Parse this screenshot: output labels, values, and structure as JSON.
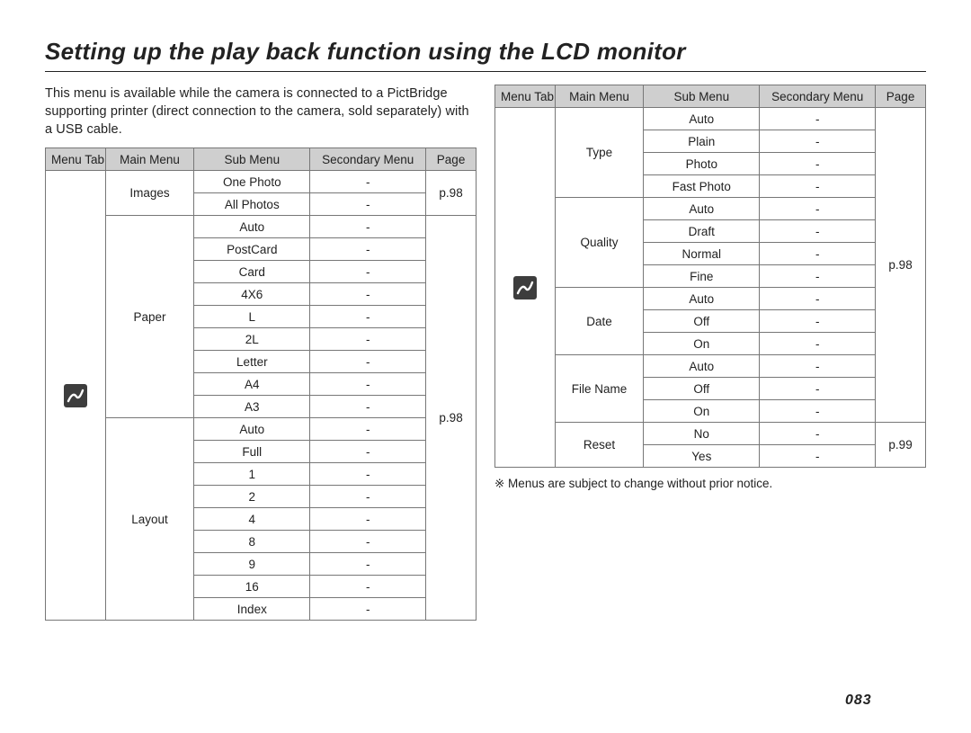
{
  "heading": "Setting up the play back function using the LCD monitor",
  "intro": "This menu is available while the camera is connected to a PictBridge supporting printer (direct connection to the camera, sold separately) with a USB cable.",
  "headers": {
    "tab": "Menu Tab",
    "main": "Main Menu",
    "sub": "Sub Menu",
    "sec": "Secondary Menu",
    "page": "Page"
  },
  "icon_name": "pictbridge-icon",
  "icon_bg": "#3d3d3d",
  "table1": {
    "icon_rowspan": 20,
    "page_text": "p.98",
    "groups": [
      {
        "main": "Images",
        "subs": [
          "One Photo",
          "All Photos"
        ],
        "page": "p.98"
      },
      {
        "main": "Paper",
        "subs": [
          "Auto",
          "PostCard",
          "Card",
          "4X6",
          "L",
          "2L",
          "Letter",
          "A4",
          "A3"
        ]
      },
      {
        "main": "Layout",
        "subs": [
          "Auto",
          "Full",
          "1",
          "2",
          "4",
          "8",
          "9",
          "16",
          "Index"
        ]
      }
    ]
  },
  "table2": {
    "icon_rowspan": 16,
    "groups": [
      {
        "main": "Type",
        "subs": [
          "Auto",
          "Plain",
          "Photo",
          "Fast Photo"
        ]
      },
      {
        "main": "Quality",
        "subs": [
          "Auto",
          "Draft",
          "Normal",
          "Fine"
        ]
      },
      {
        "main": "Date",
        "subs": [
          "Auto",
          "Off",
          "On"
        ]
      },
      {
        "main": "File Name",
        "subs": [
          "Auto",
          "Off",
          "On"
        ]
      },
      {
        "main": "Reset",
        "subs": [
          "No",
          "Yes"
        ],
        "page": "p.99"
      }
    ],
    "page_top": "p.98",
    "page_top_rowspan": 14,
    "page_bottom": "p.99",
    "page_bottom_rowspan": 2
  },
  "footnote": "※  Menus are subject to change without prior notice.",
  "page_number": "083",
  "dash": "-"
}
